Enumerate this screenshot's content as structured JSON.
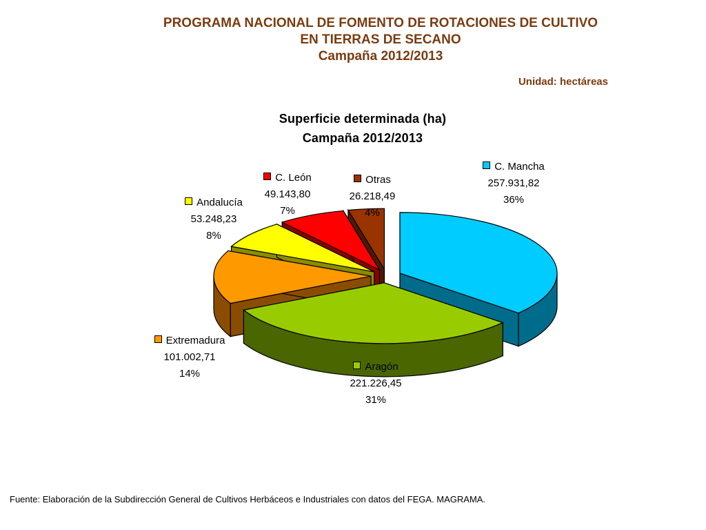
{
  "header": {
    "title_line1": "PROGRAMA NACIONAL DE FOMENTO DE ROTACIONES DE CULTIVO",
    "title_line2": "EN TIERRAS DE SECANO",
    "campaign": "Campaña 2012/2013",
    "unit": "Unidad: hectáreas"
  },
  "chart_data": {
    "type": "pie",
    "style": "3d-exploded",
    "title": "Superficie determinada (ha)",
    "subtitle": "Campaña 2012/2013",
    "slices": [
      {
        "name": "C. Mancha",
        "value_label": "257.931,82",
        "value": 257931.82,
        "percent_label": "36%",
        "color": "#00ccff",
        "side_color": "#006c8c"
      },
      {
        "name": "Aragón",
        "value_label": "221.226,45",
        "value": 221226.45,
        "percent_label": "31%",
        "color": "#99cc00",
        "side_color": "#4a6600"
      },
      {
        "name": "Extremadura",
        "value_label": "101.002,71",
        "value": 101002.71,
        "percent_label": "14%",
        "color": "#ff9900",
        "side_color": "#8a4d00"
      },
      {
        "name": "Andalucía",
        "value_label": "53.248,23",
        "value": 53248.23,
        "percent_label": "8%",
        "color": "#ffff00",
        "side_color": "#8c8c00"
      },
      {
        "name": "C. León",
        "value_label": "49.143,80",
        "value": 49143.8,
        "percent_label": "7%",
        "color": "#ff0000",
        "side_color": "#8c0000"
      },
      {
        "name": "Otras",
        "value_label": "26.218,49",
        "value": 26218.49,
        "percent_label": "4%",
        "color": "#993300",
        "side_color": "#4d1a00"
      }
    ]
  },
  "footer": {
    "source": "Fuente: Elaboración de la Subdirección General de Cultivos Herbáceos e Industriales con datos del FEGA. MAGRAMA."
  }
}
